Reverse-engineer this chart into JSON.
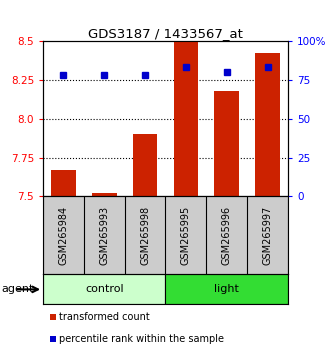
{
  "title": "GDS3187 / 1433567_at",
  "samples": [
    "GSM265984",
    "GSM265993",
    "GSM265998",
    "GSM265995",
    "GSM265996",
    "GSM265997"
  ],
  "groups": [
    {
      "name": "control",
      "indices": [
        0,
        1,
        2
      ],
      "color": "#ccffcc"
    },
    {
      "name": "light",
      "indices": [
        3,
        4,
        5
      ],
      "color": "#33dd33"
    }
  ],
  "bar_values": [
    7.67,
    7.52,
    7.9,
    8.49,
    8.18,
    8.42
  ],
  "bar_base": 7.5,
  "bar_color": "#cc2200",
  "percentile_values": [
    78,
    78,
    78,
    83,
    80,
    83
  ],
  "percentile_color": "#0000cc",
  "ylim_left": [
    7.5,
    8.5
  ],
  "ylim_right": [
    0,
    100
  ],
  "yticks_left": [
    7.5,
    7.75,
    8.0,
    8.25,
    8.5
  ],
  "yticks_right": [
    0,
    25,
    50,
    75,
    100
  ],
  "ytick_labels_right": [
    "0",
    "25",
    "50",
    "75",
    "100%"
  ],
  "hlines": [
    7.75,
    8.0,
    8.25
  ],
  "bar_width": 0.6,
  "legend_items": [
    {
      "label": "transformed count",
      "color": "#cc2200"
    },
    {
      "label": "percentile rank within the sample",
      "color": "#0000cc"
    }
  ]
}
